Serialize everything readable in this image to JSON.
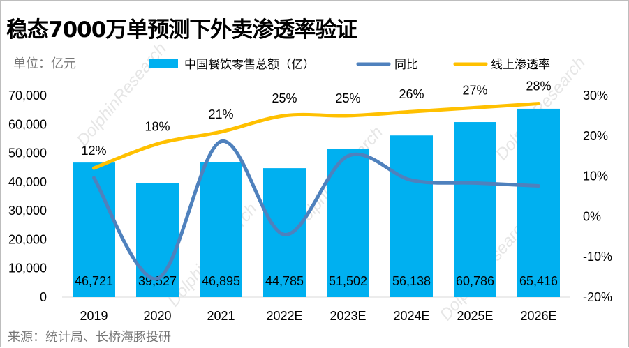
{
  "title": "稳态7000万单预测下外卖渗透率验证",
  "unit_label": "单位：亿元",
  "source": "来源：统计局、长桥海豚投研",
  "watermark": "DolphinResearch",
  "colors": {
    "bar": "#00B0F0",
    "yoy": "#4F81BD",
    "penetration": "#FFC000"
  },
  "chart_data": {
    "type": "bar",
    "categories": [
      "2019",
      "2020",
      "2021",
      "2022E",
      "2023E",
      "2024E",
      "2025E",
      "2026E"
    ],
    "series": [
      {
        "name": "中国餐饮零售总额（亿）",
        "type": "bar",
        "axis": "left",
        "values": [
          46721,
          39527,
          46895,
          44785,
          51502,
          56138,
          60786,
          65416
        ],
        "labels": [
          "46,721",
          "39,527",
          "46,895",
          "44,785",
          "51,502",
          "56,138",
          "60,786",
          "65,416"
        ]
      },
      {
        "name": "同比",
        "type": "line",
        "axis": "right",
        "smooth": true,
        "values": [
          9.6,
          -15.4,
          18.6,
          -4.5,
          15.0,
          9.0,
          8.3,
          7.6
        ]
      },
      {
        "name": "线上渗透率",
        "type": "line",
        "axis": "right",
        "smooth": true,
        "values": [
          12,
          18,
          21,
          25,
          25,
          26,
          27,
          28
        ],
        "labels": [
          "12%",
          "18%",
          "21%",
          "25%",
          "25%",
          "26%",
          "27%",
          "28%"
        ]
      }
    ],
    "left_axis": {
      "min": 0,
      "max": 70000,
      "ticks": [
        "0",
        "10,000",
        "20,000",
        "30,000",
        "40,000",
        "50,000",
        "60,000",
        "70,000"
      ]
    },
    "right_axis": {
      "min": -20,
      "max": 30,
      "ticks": [
        "-20%",
        "-10%",
        "0%",
        "10%",
        "20%",
        "30%"
      ]
    },
    "legend_position": "top",
    "grid": false
  }
}
